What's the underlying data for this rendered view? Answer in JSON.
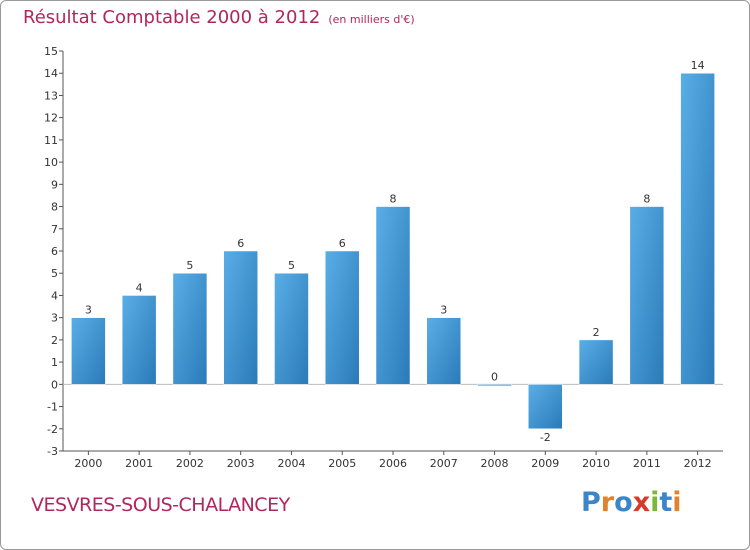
{
  "chart_data": {
    "type": "bar",
    "title": "Résultat Comptable 2000 à 2012",
    "subtitle": "(en milliers d'€)",
    "categories": [
      "2000",
      "2001",
      "2002",
      "2003",
      "2004",
      "2005",
      "2006",
      "2007",
      "2008",
      "2009",
      "2010",
      "2011",
      "2012"
    ],
    "values": [
      3,
      4,
      5,
      6,
      5,
      6,
      8,
      3,
      0,
      -2,
      2,
      8,
      14
    ],
    "ylim": [
      -3,
      15
    ],
    "yticks": [
      -3,
      -2,
      -1,
      0,
      1,
      2,
      3,
      4,
      5,
      6,
      7,
      8,
      9,
      10,
      11,
      12,
      13,
      14,
      15
    ],
    "xlabel": "",
    "ylabel": "",
    "grid": false
  },
  "footer": {
    "commune": "VESVRES-SOUS-CHALANCEY",
    "brand_letters": [
      "P",
      "r",
      "o",
      "x",
      "i",
      "t",
      "i"
    ],
    "brand_colors": [
      "#3a86c8",
      "#e2822a",
      "#3a86c8",
      "#d63a2a",
      "#7ab83a",
      "#3a86c8",
      "#e2822a"
    ]
  },
  "colors": {
    "bar_dark": "#2a7ab8",
    "bar_light": "#5aaee6",
    "title": "#b0275a",
    "axis": "#555555"
  }
}
